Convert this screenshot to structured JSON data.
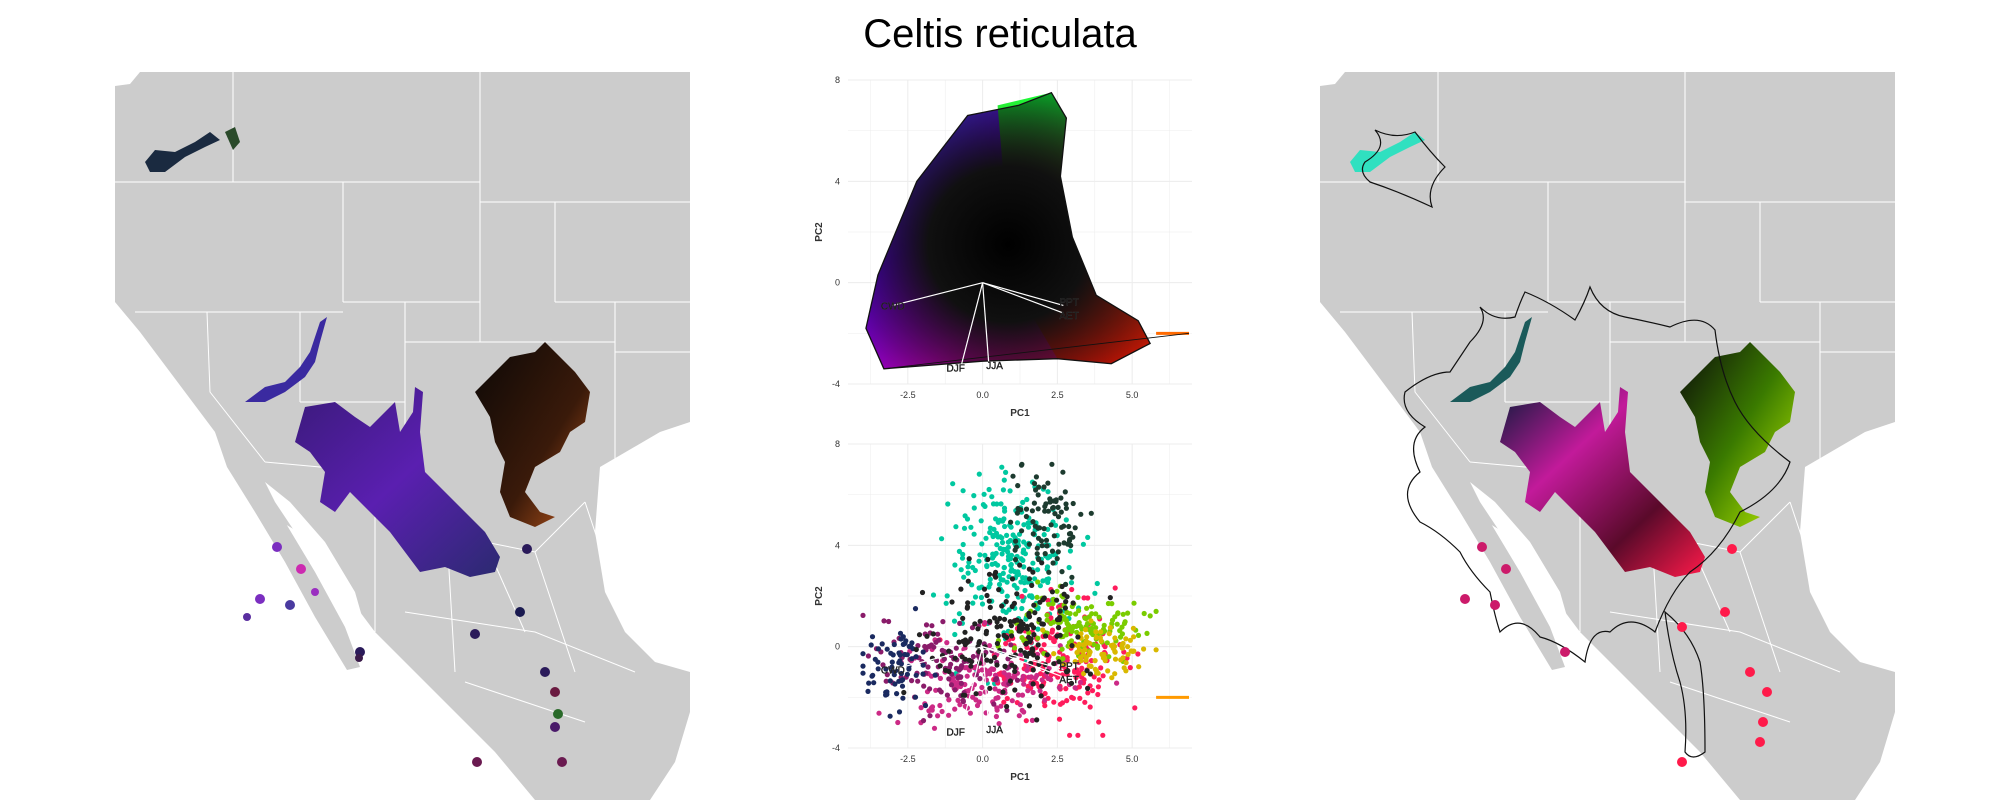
{
  "title": "Celtis reticulata",
  "colors": {
    "land": "#cccccc",
    "borders": "#ffffff",
    "plot_bg": "#ffffff",
    "grid": "#ececec"
  },
  "chart_data": [
    {
      "type": "scatter",
      "panel": "PCA climate space (top)",
      "xlabel": "PC1",
      "ylabel": "PC2",
      "xlim": [
        -4.5,
        7.0
      ],
      "ylim": [
        -4,
        8
      ],
      "x_ticks": [
        "-2.5",
        "0.0",
        "2.5",
        "5.0"
      ],
      "y_ticks": [
        "-4",
        "0",
        "4",
        "8"
      ],
      "grid": true,
      "hull": [
        [
          -3.3,
          -3.4
        ],
        [
          -3.9,
          -1.8
        ],
        [
          -3.5,
          0.3
        ],
        [
          -2.2,
          4.0
        ],
        [
          -0.5,
          6.6
        ],
        [
          1.2,
          7.0
        ],
        [
          2.3,
          7.5
        ],
        [
          2.8,
          6.5
        ],
        [
          2.6,
          4.2
        ],
        [
          3.0,
          1.8
        ],
        [
          3.8,
          -0.5
        ],
        [
          5.2,
          -1.5
        ],
        [
          5.6,
          -2.4
        ],
        [
          4.3,
          -3.2
        ],
        [
          2.5,
          -3.0
        ],
        [
          0.0,
          -3.1
        ]
      ],
      "vectors": [
        {
          "label": "CWD",
          "x": -3.0,
          "y": -0.9
        },
        {
          "label": "PPT",
          "x": 2.7,
          "y": -0.9
        },
        {
          "label": "AET",
          "x": 2.7,
          "y": -1.2
        },
        {
          "label": "DJF",
          "x": -0.7,
          "y": -3.2
        },
        {
          "label": "JJA",
          "x": 0.2,
          "y": -3.1
        }
      ],
      "outlier_cluster": {
        "x": [
          5.8,
          6.9
        ],
        "y": -2.0
      }
    },
    {
      "type": "scatter",
      "panel": "PCA climate space (bottom)",
      "xlabel": "PC1",
      "ylabel": "PC2",
      "xlim": [
        -4.5,
        7.0
      ],
      "ylim": [
        -4,
        8
      ],
      "x_ticks": [
        "-2.5",
        "0.0",
        "2.5",
        "5.0"
      ],
      "y_ticks": [
        "-4",
        "0",
        "4",
        "8"
      ],
      "grid": true,
      "series": [
        {
          "color": "#00c8a0",
          "cx": 1.0,
          "cy": 3.5,
          "sx": 1.0,
          "sy": 1.6,
          "n": 260
        },
        {
          "color": "#1d3b2f",
          "cx": 2.0,
          "cy": 4.8,
          "sx": 0.6,
          "sy": 1.1,
          "n": 90
        },
        {
          "color": "#ff1c5c",
          "cx": 2.4,
          "cy": -0.5,
          "sx": 1.1,
          "sy": 1.1,
          "n": 200
        },
        {
          "color": "#cc2a86",
          "cx": 0.0,
          "cy": -1.4,
          "sx": 1.4,
          "sy": 0.8,
          "n": 160
        },
        {
          "color": "#7acc00",
          "cx": 3.2,
          "cy": 0.8,
          "sx": 1.0,
          "sy": 0.7,
          "n": 140
        },
        {
          "color": "#d9b800",
          "cx": 4.0,
          "cy": -0.2,
          "sx": 0.7,
          "sy": 0.6,
          "n": 80
        },
        {
          "color": "#8a1c6a",
          "cx": -1.2,
          "cy": -0.6,
          "sx": 1.2,
          "sy": 0.8,
          "n": 110
        },
        {
          "color": "#1a2a60",
          "cx": -2.8,
          "cy": -1.0,
          "sx": 0.6,
          "sy": 0.8,
          "n": 70
        },
        {
          "color": "#222222",
          "cx": 0.8,
          "cy": 0.6,
          "sx": 1.3,
          "sy": 1.2,
          "n": 180
        }
      ],
      "vectors": [
        {
          "label": "CWD",
          "x": -3.0,
          "y": -0.9
        },
        {
          "label": "PPT",
          "x": 2.7,
          "y": -0.9
        },
        {
          "label": "AET",
          "x": 2.7,
          "y": -1.2
        },
        {
          "label": "DJF",
          "x": -0.7,
          "y": -3.2
        },
        {
          "label": "JJA",
          "x": 0.2,
          "y": -3.1
        }
      ],
      "outlier_cluster": {
        "x": [
          5.8,
          6.9
        ],
        "y": -2.0
      }
    }
  ]
}
